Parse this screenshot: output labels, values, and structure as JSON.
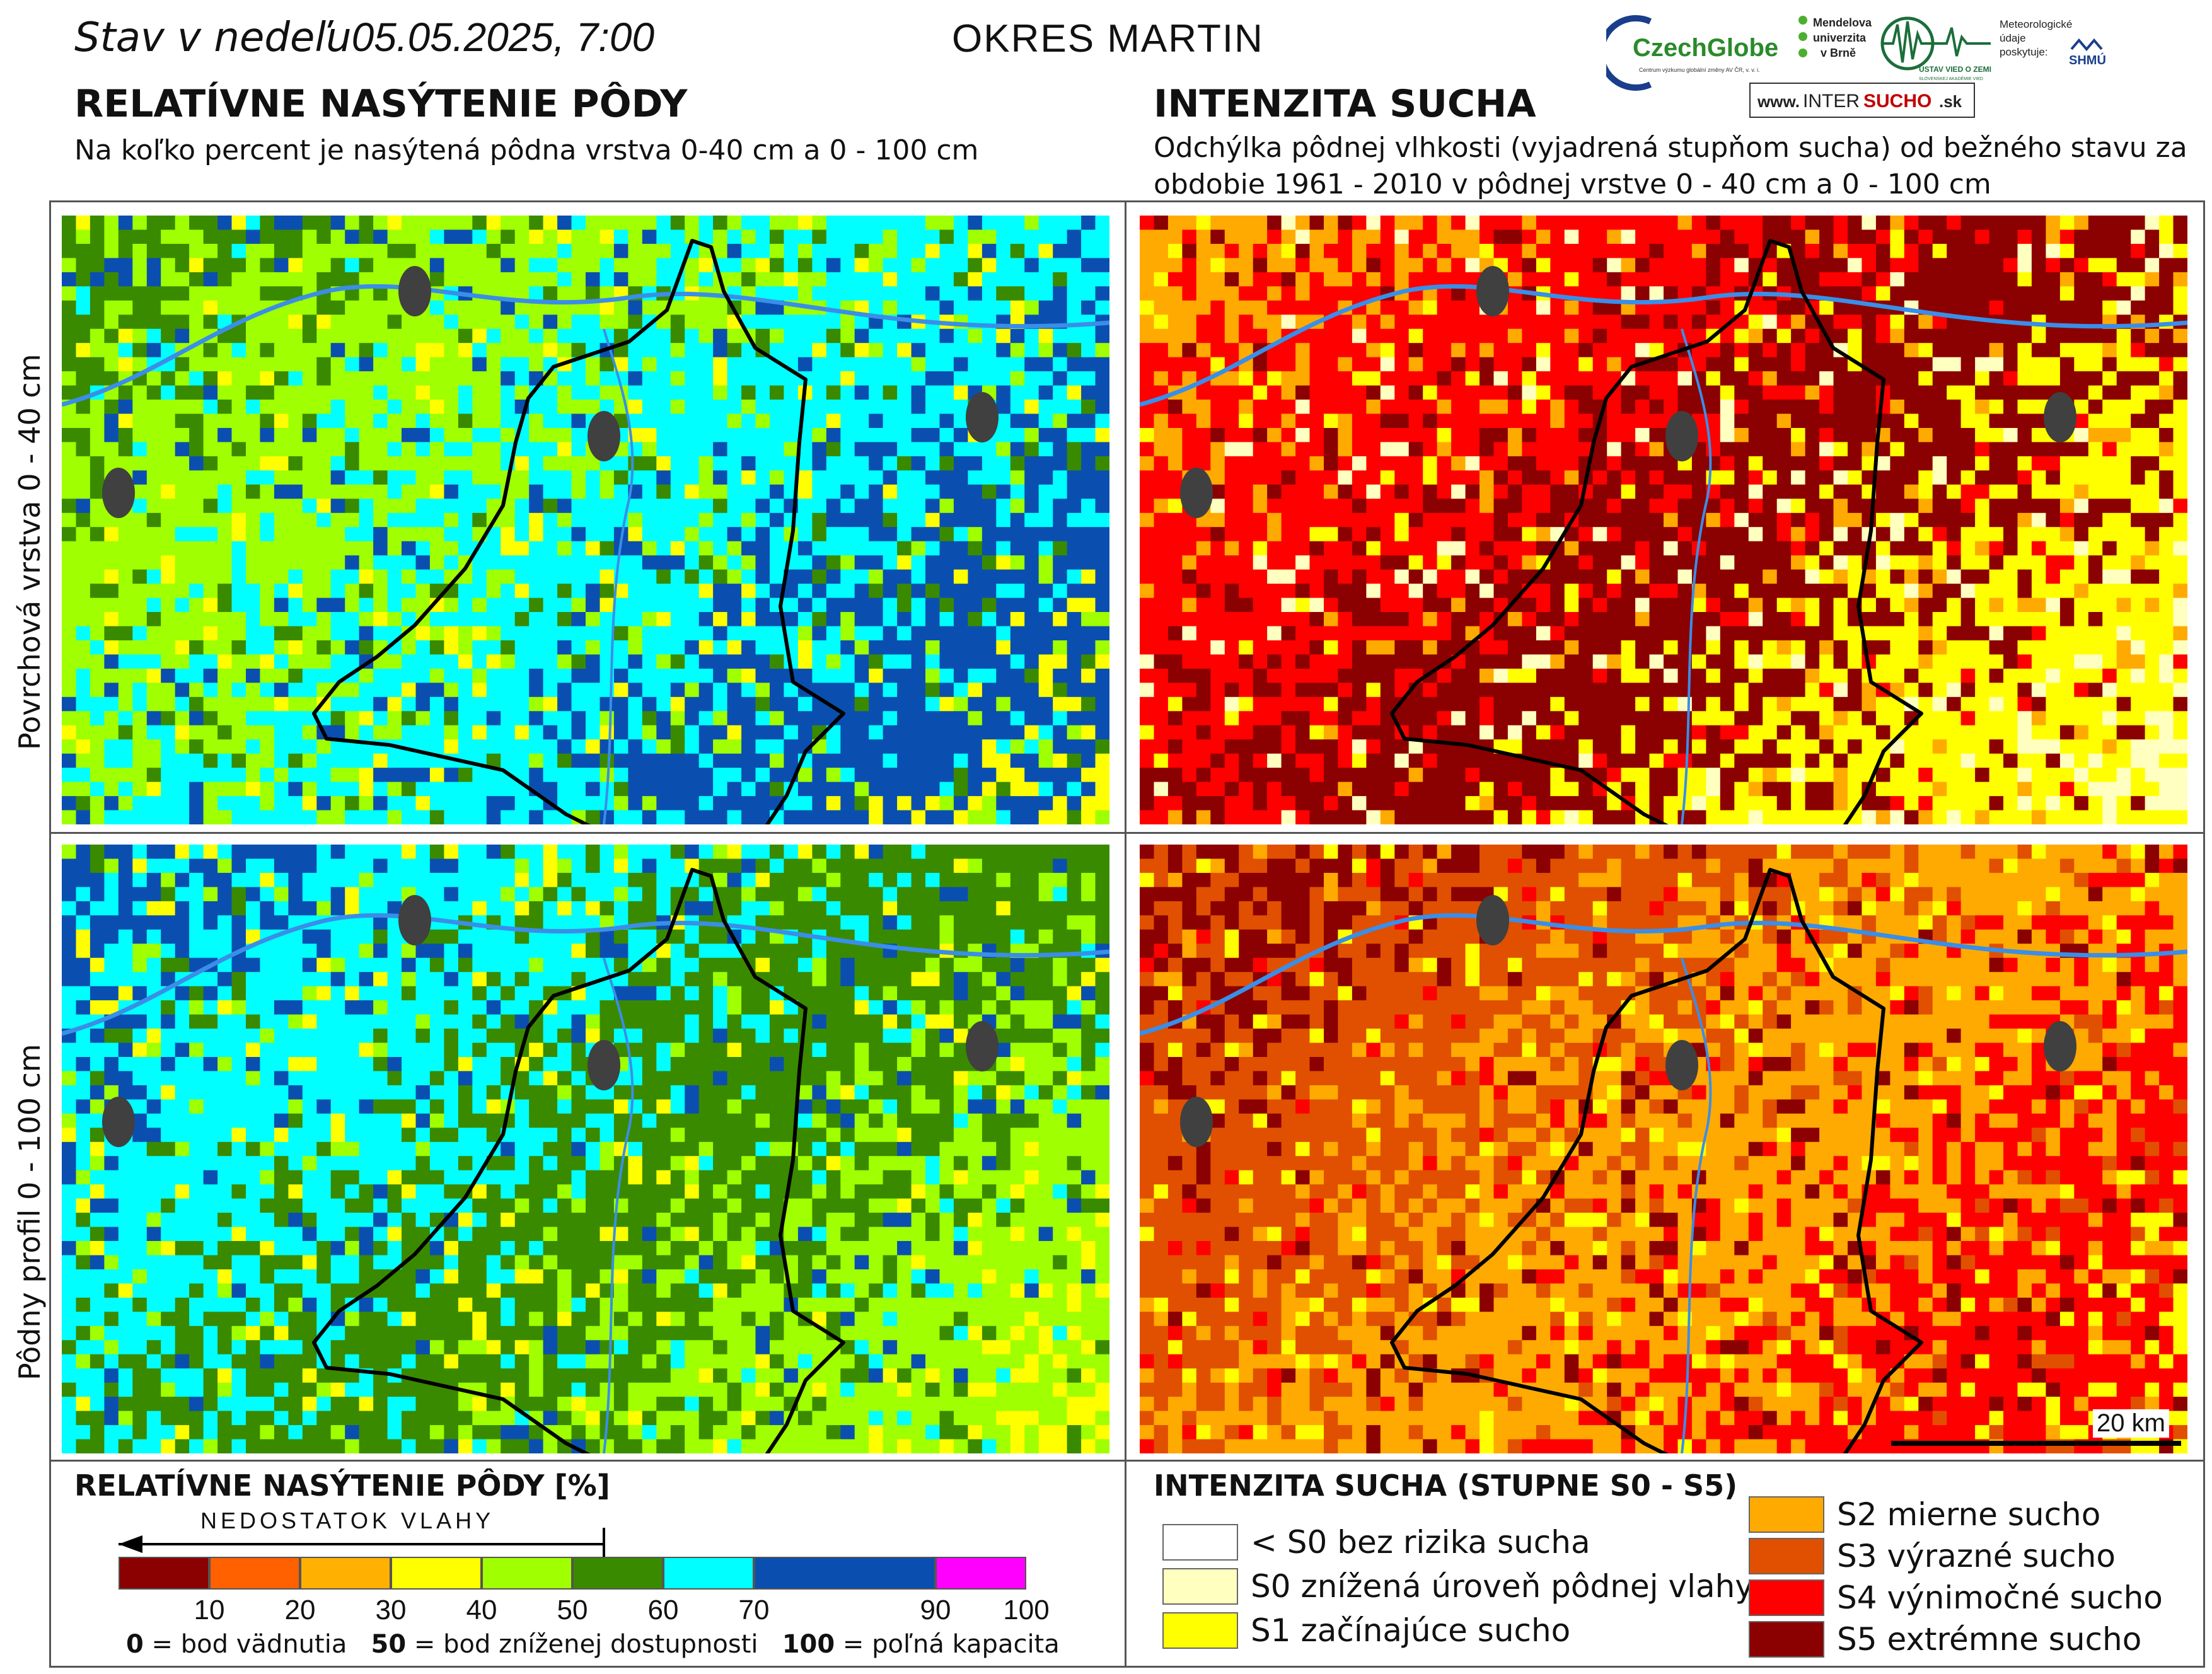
{
  "header": {
    "date_prefix": "Stav v nedeľu",
    "date_value": "05.05.2025, 7:00",
    "region": "OKRES  MARTIN",
    "left_title": "RELATÍVNE NASÝTENIE PÔDY",
    "left_subtitle": "Na koľko percent je nasýtená pôdna vrstva 0-40 cm a 0 - 100 cm",
    "right_title": "INTENZITA SUCHA",
    "right_subtitle": "Odchýlka pôdnej vlhkosti (vyjadrená stupňom sucha) od bežného stavu za obdobie 1961 - 2010 v pôdnej vrstve 0 - 40 cm a 0 - 100 cm"
  },
  "logos": {
    "czechglobe": "CzechGlobe",
    "czechglobe_tagline": "Centrum výzkumu globální změny AV ČR, v. v. i.",
    "mendelu_line1": "Mendelova",
    "mendelu_line2": "univerzita",
    "mendelu_line3": "v Brně",
    "uvz": "ÚSTAV VIED O ZEMI",
    "uvz_sub": "SLOVENSKEJ AKADÉMIE VIED",
    "meteo_line1": "Meteorologické",
    "meteo_line2": "údaje",
    "meteo_line3": "poskytuje:",
    "shmu": "SHMÚ",
    "intersucho_www": "www.",
    "intersucho_a": "INTER",
    "intersucho_b": "SUCHO",
    "intersucho_c": ".sk"
  },
  "rows": {
    "top_label": "Povrchová vrstva 0 - 40 cm",
    "bottom_label": "Pôdny profil 0 - 100 cm"
  },
  "scale_bar": {
    "label": "20 km"
  },
  "saturation_legend": {
    "title": "RELATÍVNE NASÝTENIE PÔDY [%]",
    "arrow_label": "NEDOSTATOK VLAHY",
    "classes": [
      {
        "from": 0,
        "to": 10,
        "color": "#8b0000"
      },
      {
        "from": 10,
        "to": 20,
        "color": "#ff6000"
      },
      {
        "from": 20,
        "to": 30,
        "color": "#ffb000"
      },
      {
        "from": 30,
        "to": 40,
        "color": "#ffff00"
      },
      {
        "from": 40,
        "to": 50,
        "color": "#a0ff00"
      },
      {
        "from": 50,
        "to": 60,
        "color": "#3a8a00"
      },
      {
        "from": 60,
        "to": 70,
        "color": "#00ffff"
      },
      {
        "from": 70,
        "to": 90,
        "color": "#0a4fb0"
      },
      {
        "from": 90,
        "to": 100,
        "color": "#ff00ff"
      }
    ],
    "ticks": [
      "10",
      "20",
      "30",
      "40",
      "50",
      "60",
      "70",
      "90",
      "100"
    ],
    "note_0_value": "0",
    "note_0_text": " = bod vädnutia",
    "note_50_value": "50",
    "note_50_text": " = bod zníženej dostupnosti",
    "note_100_value": "100",
    "note_100_text": " = poľná kapacita"
  },
  "drought_legend": {
    "title": "INTENZITA SUCHA (STUPNE S0 - S5)",
    "items_left": [
      {
        "label": "< S0 bez rizika sucha",
        "color": "#ffffff"
      },
      {
        "label": "S0 znížená úroveň pôdnej vlahy",
        "color": "#ffffc0"
      },
      {
        "label": "S1 začínajúce sucho",
        "color": "#ffff00"
      }
    ],
    "items_right": [
      {
        "label": "S2 mierne sucho",
        "color": "#ffaa00"
      },
      {
        "label": "S3 výrazné sucho",
        "color": "#e05000"
      },
      {
        "label": "S4 výnimočné sucho",
        "color": "#ff0000"
      },
      {
        "label": "S5 extrémne sucho",
        "color": "#8b0000"
      }
    ]
  },
  "map_colors": {
    "saturation_top": [
      "#3a8a00",
      "#a0ff00",
      "#00ffff",
      "#0a4fb0",
      "#ffff00"
    ],
    "saturation_bottom": [
      "#0a4fb0",
      "#00ffff",
      "#3a8a00",
      "#a0ff00",
      "#ffff00"
    ],
    "drought_top": [
      "#ffaa00",
      "#ff0000",
      "#8b0000",
      "#ffff00",
      "#ffffc0"
    ],
    "drought_bottom": [
      "#8b0000",
      "#e05000",
      "#ffaa00",
      "#ff0000",
      "#ffff00"
    ],
    "river": "#3a8ee8",
    "district_border": "#000000",
    "town": "#404040"
  }
}
